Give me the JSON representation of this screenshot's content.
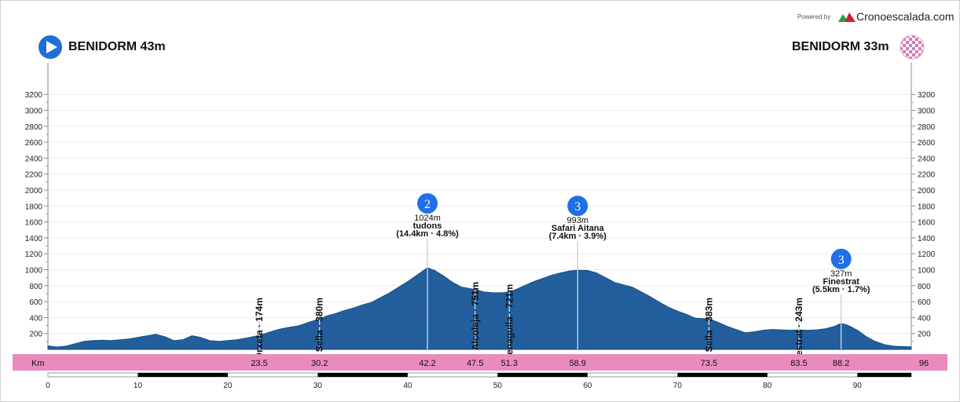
{
  "header": {
    "powered_by": "Powered by",
    "brand": "Cronoescalada.com"
  },
  "start": {
    "label": "BENIDORM 43m"
  },
  "finish": {
    "label": "BENIDORM 33m"
  },
  "chart_data": {
    "type": "area",
    "title": "",
    "xlabel": "Km",
    "ylabel": "",
    "xlim": [
      0,
      96
    ],
    "ylim": [
      0,
      3300
    ],
    "y_ticks": [
      200,
      400,
      600,
      800,
      1000,
      1200,
      1400,
      1600,
      1800,
      2000,
      2200,
      2400,
      2600,
      2800,
      3000,
      3200
    ],
    "x_ticks": [
      0,
      10,
      20,
      30,
      40,
      50,
      60,
      70,
      80,
      90
    ],
    "grid": true,
    "fill_color": "#1f5a99",
    "band_color": "#ea8bbf",
    "series": [
      {
        "x": [
          0,
          1,
          2,
          3,
          4,
          5,
          6,
          7,
          8,
          9,
          10,
          11,
          12,
          13,
          14,
          15,
          16,
          17,
          18,
          19,
          20,
          21,
          22,
          23.5,
          25,
          26,
          27,
          28,
          29,
          30.2,
          31,
          32,
          33,
          34,
          35,
          36,
          37,
          38,
          39,
          40,
          41,
          42.2,
          43,
          44,
          45,
          46,
          47.5,
          48.5,
          49.5,
          50.5,
          51.3,
          52,
          53,
          54,
          55,
          56,
          57,
          58,
          58.9,
          60,
          61,
          62,
          63,
          64,
          65,
          66,
          67,
          68,
          69,
          70,
          71,
          72,
          73.5,
          74.5,
          75.5,
          76.5,
          77.5,
          78.5,
          79.5,
          80.5,
          81.5,
          82.5,
          83.5,
          84.5,
          85.5,
          86.5,
          87.5,
          88.2,
          89,
          90,
          91,
          92,
          93,
          94,
          95,
          96
        ],
        "y": [
          43,
          30,
          40,
          70,
          100,
          110,
          115,
          110,
          120,
          130,
          150,
          170,
          190,
          160,
          110,
          120,
          170,
          150,
          110,
          100,
          110,
          120,
          140,
          174,
          230,
          260,
          280,
          300,
          340,
          380,
          420,
          450,
          490,
          520,
          560,
          590,
          650,
          710,
          780,
          850,
          930,
          1024,
          990,
          920,
          840,
          780,
          751,
          720,
          710,
          710,
          721,
          750,
          800,
          850,
          890,
          930,
          960,
          985,
          993,
          990,
          960,
          900,
          840,
          810,
          780,
          720,
          660,
          590,
          530,
          480,
          440,
          390,
          383,
          340,
          290,
          250,
          210,
          220,
          240,
          250,
          245,
          240,
          243,
          240,
          245,
          260,
          290,
          327,
          300,
          240,
          160,
          100,
          60,
          40,
          35,
          33
        ]
      }
    ],
    "waypoints": [
      {
        "km": "23.5",
        "elev": 174,
        "label": "Orxeta · 174m"
      },
      {
        "km": "30.2",
        "elev": 380,
        "label": "Sella · 380m"
      },
      {
        "km": "47.5",
        "elev": 751,
        "label": "Alcoleja · 751m"
      },
      {
        "km": "51.3",
        "elev": 721,
        "label": "Penaguila · 721m"
      },
      {
        "km": "73.5",
        "elev": 383,
        "label": "Sella · 383m"
      },
      {
        "km": "83.5",
        "elev": 243,
        "label": "Finestrat · 243m"
      }
    ],
    "climbs": [
      {
        "km": "42.2",
        "category": "2",
        "elev": 1024,
        "line1": "1024m",
        "line2": "tudons",
        "line3": "(14.4km · 4.8%)"
      },
      {
        "km": "58.9",
        "category": "3",
        "elev": 993,
        "line1": "993m",
        "line2": "Safari Aitana",
        "line3": "(7.4km · 3.9%)"
      },
      {
        "km": "88.2",
        "category": "3",
        "elev": 327,
        "line1": "327m",
        "line2": "Finestrat",
        "line3": "(5.5km · 1.7%)"
      }
    ],
    "band_km_labels": [
      "23.5",
      "30.2",
      "42.2",
      "47.5",
      "51.3",
      "58.9",
      "73.5",
      "83.5",
      "88.2"
    ],
    "band_end_label": "96"
  }
}
